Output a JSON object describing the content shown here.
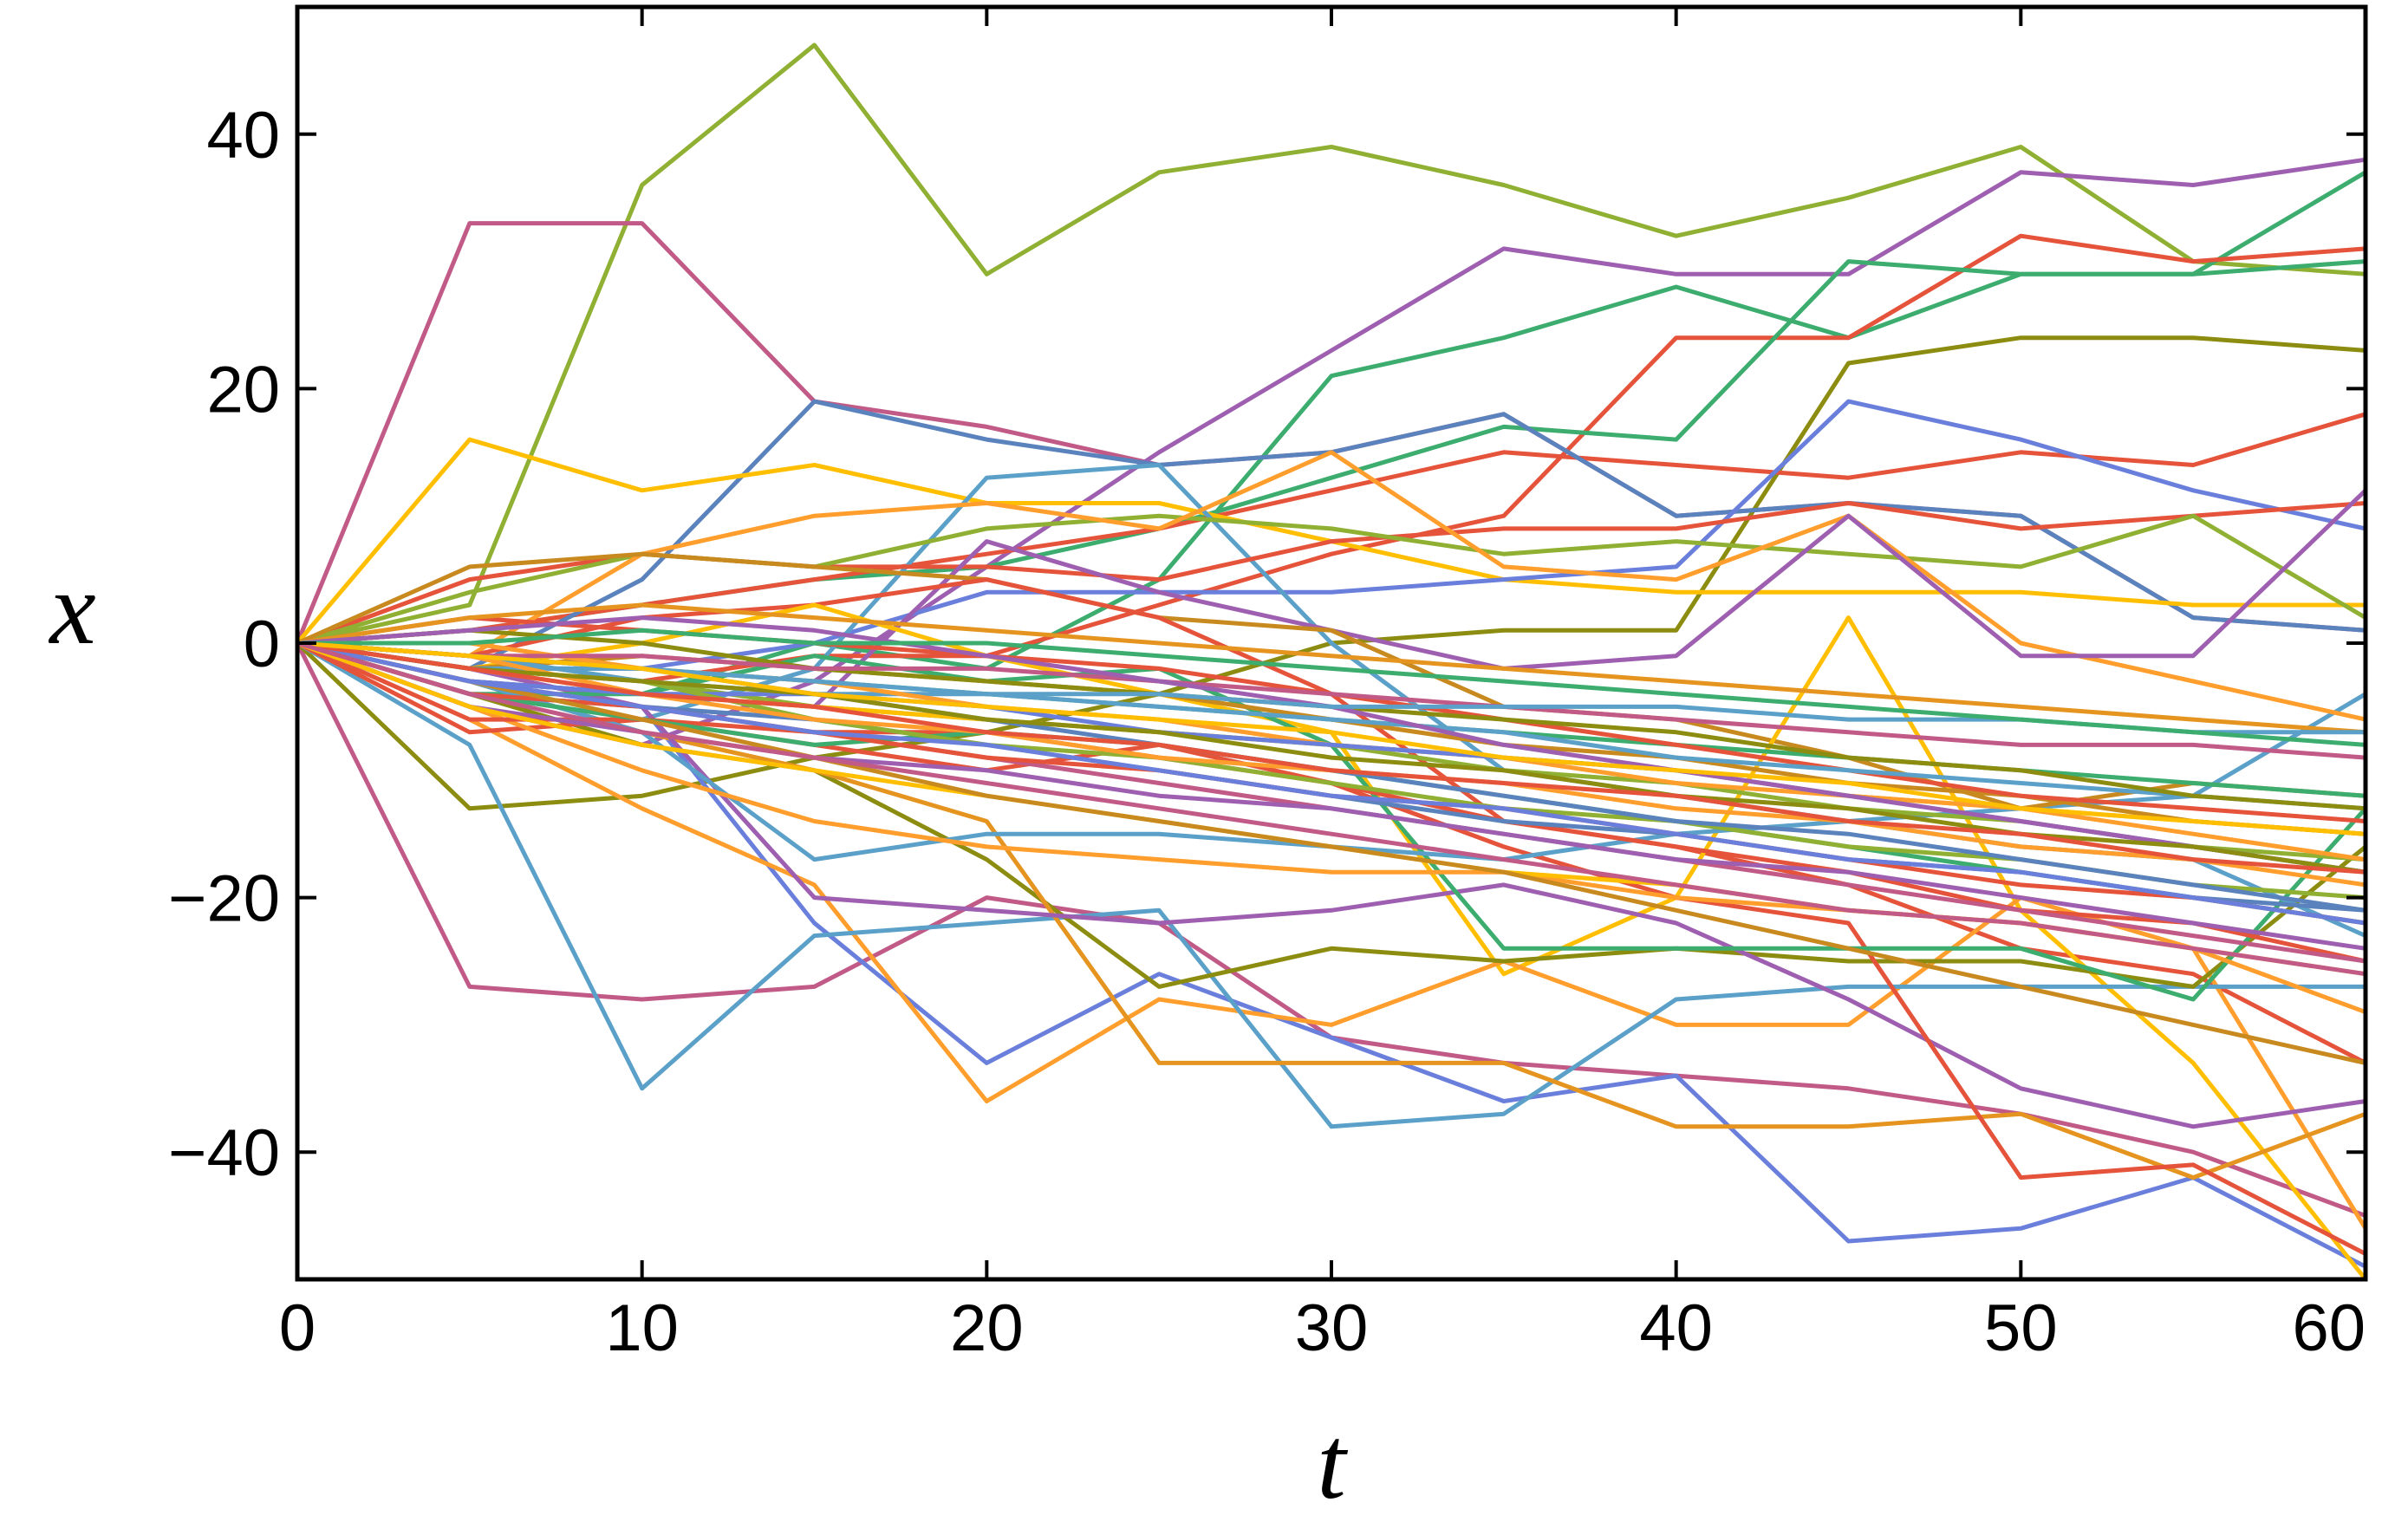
{
  "chart_data": {
    "type": "line",
    "title": "",
    "xlabel": "t",
    "ylabel": "x",
    "xlim": [
      0,
      60
    ],
    "ylim": [
      -50,
      50
    ],
    "x_ticks": [
      0,
      10,
      20,
      30,
      40,
      50,
      60
    ],
    "y_ticks": [
      -40,
      -20,
      0,
      20,
      40
    ],
    "x_tick_labels": [
      "0",
      "10",
      "20",
      "30",
      "40",
      "50",
      "60"
    ],
    "y_tick_labels": [
      "−40",
      "−20",
      "0",
      "20",
      "40"
    ],
    "grid": false,
    "legend": "none",
    "x": [
      0,
      5,
      10,
      15,
      20,
      25,
      30,
      35,
      40,
      45,
      50,
      55,
      60
    ],
    "series": [
      {
        "color": "#8fb032",
        "values": [
          0,
          3,
          36,
          47,
          29,
          37,
          39,
          36,
          32,
          35,
          39,
          30,
          29
        ]
      },
      {
        "color": "#c15a87",
        "values": [
          0,
          33,
          33,
          19,
          17,
          14,
          15,
          18,
          10,
          11,
          10,
          2,
          1
        ]
      },
      {
        "color": "#c15a87",
        "values": [
          0,
          -27,
          -28,
          -27,
          -20,
          -22,
          -31,
          -33,
          -34,
          -35,
          -37,
          -40,
          -45
        ]
      },
      {
        "color": "#9e5fb0",
        "values": [
          0,
          -5,
          -8,
          -3,
          6,
          15,
          23,
          31,
          29,
          29,
          37,
          36,
          38
        ]
      },
      {
        "color": "#3cad6e",
        "values": [
          0,
          -3,
          -4,
          0,
          -2,
          5,
          21,
          24,
          28,
          24,
          29,
          29,
          37
        ]
      },
      {
        "color": "#e5533b",
        "values": [
          0,
          -2,
          -3,
          -1,
          -1,
          3,
          7,
          10,
          24,
          24,
          32,
          30,
          31
        ]
      },
      {
        "color": "#3cad6e",
        "values": [
          0,
          1,
          3,
          5,
          6,
          9,
          13,
          17,
          16,
          30,
          29,
          29,
          30
        ]
      },
      {
        "color": "#8c8c10",
        "values": [
          0,
          -13,
          -12,
          -9,
          -7,
          -4,
          0,
          1,
          1,
          22,
          24,
          24,
          23
        ]
      },
      {
        "color": "#e5533b",
        "values": [
          0,
          1,
          3,
          5,
          7,
          9,
          12,
          15,
          14,
          13,
          15,
          14,
          18
        ]
      },
      {
        "color": "#5a82bd",
        "values": [
          0,
          -2,
          5,
          19,
          16,
          14,
          15,
          18,
          10,
          11,
          10,
          2,
          1
        ]
      },
      {
        "color": "#ffbf00",
        "values": [
          0,
          16,
          12,
          14,
          11,
          11,
          8,
          5,
          4,
          4,
          4,
          3,
          3
        ]
      },
      {
        "color": "#6a7fdb",
        "values": [
          0,
          -2,
          -2,
          0,
          4,
          4,
          4,
          5,
          6,
          19,
          16,
          12,
          9
        ]
      },
      {
        "color": "#5aa0c8",
        "values": [
          0,
          -4,
          -6,
          -2,
          13,
          14,
          0,
          -10,
          -12,
          -14,
          -13,
          -12,
          -4
        ]
      },
      {
        "color": "#e5533b",
        "values": [
          0,
          5,
          7,
          6,
          6,
          5,
          8,
          9,
          9,
          11,
          9,
          10,
          11
        ]
      },
      {
        "color": "#8fb032",
        "values": [
          0,
          4,
          7,
          6,
          9,
          10,
          9,
          7,
          8,
          7,
          6,
          10,
          2
        ]
      },
      {
        "color": "#ff9e2c",
        "values": [
          0,
          -1,
          7,
          10,
          11,
          9,
          15,
          6,
          5,
          10,
          0,
          -3,
          -6
        ]
      },
      {
        "color": "#9e5fb0",
        "values": [
          0,
          -3,
          -4,
          -5,
          8,
          4,
          1,
          -2,
          -1,
          10,
          -1,
          -1,
          12
        ]
      },
      {
        "color": "#c8891f",
        "values": [
          0,
          6,
          7,
          6,
          5,
          2,
          1,
          -5,
          -6,
          -9,
          -13,
          -11,
          -12
        ]
      },
      {
        "color": "#e5533b",
        "values": [
          0,
          -1,
          2,
          3,
          5,
          2,
          -4,
          -14,
          -16,
          -19,
          -24,
          -26,
          -33
        ]
      },
      {
        "color": "#6a7fdb",
        "values": [
          0,
          -2,
          -5,
          -22,
          -33,
          -26,
          -31,
          -36,
          -34,
          -47,
          -46,
          -42,
          -49
        ]
      },
      {
        "color": "#ffbf00",
        "values": [
          0,
          -2,
          0,
          3,
          -1,
          -4,
          -7,
          -26,
          -20,
          2,
          -21,
          -33,
          -50
        ]
      },
      {
        "color": "#ff9e2c",
        "values": [
          0,
          -6,
          -13,
          -19,
          -36,
          -28,
          -30,
          -25,
          -30,
          -30,
          -20,
          -24,
          -46
        ]
      },
      {
        "color": "#5aa0c8",
        "values": [
          0,
          -8,
          -35,
          -23,
          -22,
          -21,
          -38,
          -37,
          -28,
          -27,
          -27,
          -27,
          -27
        ]
      },
      {
        "color": "#8c8c10",
        "values": [
          0,
          -4,
          -8,
          -10,
          -17,
          -27,
          -24,
          -25,
          -24,
          -25,
          -25,
          -27,
          -16
        ]
      },
      {
        "color": "#e59420",
        "values": [
          0,
          -3,
          -7,
          -10,
          -14,
          -33,
          -33,
          -33,
          -38,
          -38,
          -37,
          -42,
          -37
        ]
      },
      {
        "color": "#9e5fb0",
        "values": [
          0,
          -2,
          -5,
          -20,
          -21,
          -22,
          -21,
          -19,
          -22,
          -28,
          -35,
          -38,
          -36
        ]
      },
      {
        "color": "#e5533b",
        "values": [
          0,
          -7,
          -6,
          -8,
          -10,
          -8,
          -11,
          -16,
          -20,
          -22,
          -42,
          -41,
          -48
        ]
      },
      {
        "color": "#3cad6e",
        "values": [
          0,
          -4,
          -4,
          -1,
          -3,
          -2,
          -8,
          -24,
          -24,
          -24,
          -24,
          -28,
          -13
        ]
      },
      {
        "color": "#5aa0c8",
        "values": [
          0,
          -3,
          -7,
          -17,
          -15,
          -15,
          -16,
          -17,
          -15,
          -14,
          -16,
          -17,
          -23
        ]
      },
      {
        "color": "#ff9e2c",
        "values": [
          0,
          -5,
          -10,
          -14,
          -16,
          -17,
          -18,
          -18,
          -20,
          -21,
          -22,
          -24,
          -29
        ]
      },
      {
        "color": "#e5533b",
        "values": [
          0,
          -6,
          -6,
          -7,
          -7,
          -9,
          -11,
          -14,
          -16,
          -18,
          -21,
          -22,
          -25
        ]
      },
      {
        "color": "#8fb032",
        "values": [
          0,
          -1,
          -3,
          -5,
          -6,
          -7,
          -8,
          -10,
          -11,
          -13,
          -14,
          -16,
          -17
        ]
      },
      {
        "color": "#5a82bd",
        "values": [
          0,
          -4,
          -5,
          -6,
          -8,
          -10,
          -12,
          -14,
          -15,
          -17,
          -18,
          -20,
          -21
        ]
      },
      {
        "color": "#ffbf00",
        "values": [
          0,
          -2,
          -4,
          -5,
          -6,
          -7,
          -8,
          -9,
          -10,
          -12,
          -13,
          -14,
          -15
        ]
      },
      {
        "color": "#c15a87",
        "values": [
          0,
          -3,
          -5,
          -7,
          -9,
          -11,
          -13,
          -15,
          -17,
          -19,
          -21,
          -23,
          -25
        ]
      },
      {
        "color": "#3cad6e",
        "values": [
          0,
          -1,
          -2,
          -3,
          -4,
          -5,
          -6,
          -7,
          -8,
          -9,
          -10,
          -11,
          -12
        ]
      },
      {
        "color": "#9e5fb0",
        "values": [
          0,
          -5,
          -7,
          -9,
          -10,
          -12,
          -13,
          -15,
          -17,
          -18,
          -20,
          -22,
          -24
        ]
      },
      {
        "color": "#c8891f",
        "values": [
          0,
          -2,
          -1,
          -2,
          -3,
          -4,
          -6,
          -8,
          -9,
          -11,
          -12,
          -14,
          -15
        ]
      },
      {
        "color": "#e5533b",
        "values": [
          0,
          2,
          1,
          0,
          -1,
          -2,
          -4,
          -6,
          -8,
          -10,
          -12,
          -13,
          -14
        ]
      },
      {
        "color": "#5aa0c8",
        "values": [
          0,
          -1,
          -3,
          -4,
          -4,
          -5,
          -6,
          -7,
          -9,
          -10,
          -11,
          -12,
          -13
        ]
      },
      {
        "color": "#8c8c10",
        "values": [
          0,
          1,
          0,
          -2,
          -3,
          -4,
          -5,
          -6,
          -7,
          -9,
          -10,
          -12,
          -13
        ]
      },
      {
        "color": "#ff9e2c",
        "values": [
          0,
          0,
          -2,
          -3,
          -5,
          -6,
          -8,
          -9,
          -11,
          -12,
          -13,
          -15,
          -17
        ]
      },
      {
        "color": "#6a7fdb",
        "values": [
          0,
          -3,
          -4,
          -4,
          -5,
          -7,
          -8,
          -9,
          -10,
          -12,
          -14,
          -16,
          -18
        ]
      },
      {
        "color": "#3cad6e",
        "values": [
          0,
          -4,
          -6,
          -8,
          -7,
          -8,
          -10,
          -12,
          -14,
          -16,
          -18,
          -20,
          -22
        ]
      },
      {
        "color": "#ffbf00",
        "values": [
          0,
          -5,
          -8,
          -10,
          -12,
          -14,
          -16,
          -18,
          -19,
          -21,
          -22,
          -24,
          -26
        ]
      },
      {
        "color": "#c15a87",
        "values": [
          0,
          -1,
          -1,
          -2,
          -2,
          -3,
          -4,
          -5,
          -6,
          -7,
          -8,
          -8,
          -9
        ]
      },
      {
        "color": "#e59420",
        "values": [
          0,
          2,
          3,
          2,
          1,
          0,
          -1,
          -2,
          -3,
          -4,
          -5,
          -6,
          -7
        ]
      },
      {
        "color": "#8fb032",
        "values": [
          0,
          -2,
          -3,
          -6,
          -8,
          -9,
          -11,
          -13,
          -14,
          -16,
          -17,
          -19,
          -20
        ]
      },
      {
        "color": "#5a82bd",
        "values": [
          0,
          -1,
          -2,
          -4,
          -6,
          -8,
          -10,
          -12,
          -14,
          -15,
          -17,
          -19,
          -21
        ]
      },
      {
        "color": "#e5533b",
        "values": [
          0,
          -4,
          -5,
          -7,
          -9,
          -10,
          -12,
          -13,
          -15,
          -17,
          -19,
          -20,
          -22
        ]
      },
      {
        "color": "#9e5fb0",
        "values": [
          0,
          1,
          2,
          1,
          -1,
          -3,
          -5,
          -8,
          -10,
          -12,
          -14,
          -16,
          -18
        ]
      },
      {
        "color": "#c8891f",
        "values": [
          0,
          -3,
          -6,
          -9,
          -12,
          -14,
          -16,
          -18,
          -21,
          -24,
          -27,
          -30,
          -33
        ]
      },
      {
        "color": "#5aa0c8",
        "values": [
          0,
          -2,
          -2,
          -3,
          -4,
          -4,
          -5,
          -5,
          -5,
          -6,
          -6,
          -7,
          -7
        ]
      },
      {
        "color": "#ff9e2c",
        "values": [
          0,
          -1,
          -4,
          -6,
          -7,
          -9,
          -10,
          -11,
          -13,
          -14,
          -16,
          -17,
          -19
        ]
      },
      {
        "color": "#3cad6e",
        "values": [
          0,
          0,
          1,
          0,
          0,
          -1,
          -2,
          -3,
          -4,
          -5,
          -6,
          -7,
          -8
        ]
      },
      {
        "color": "#8c8c10",
        "values": [
          0,
          -2,
          -3,
          -4,
          -6,
          -7,
          -9,
          -10,
          -12,
          -13,
          -15,
          -16,
          -18
        ]
      },
      {
        "color": "#6a7fdb",
        "values": [
          0,
          -3,
          -5,
          -7,
          -8,
          -10,
          -12,
          -13,
          -15,
          -17,
          -18,
          -20,
          -22
        ]
      },
      {
        "color": "#e5533b",
        "values": [
          0,
          -2,
          -4,
          -5,
          -7,
          -8,
          -10,
          -11,
          -12,
          -14,
          -15,
          -17,
          -18
        ]
      },
      {
        "color": "#ffbf00",
        "values": [
          0,
          -1,
          -2,
          -4,
          -5,
          -6,
          -7,
          -9,
          -10,
          -11,
          -13,
          -14,
          -15
        ]
      },
      {
        "color": "#c15a87",
        "values": [
          0,
          -4,
          -7,
          -9,
          -11,
          -13,
          -15,
          -17,
          -19,
          -21,
          -22,
          -24,
          -26
        ]
      }
    ]
  }
}
